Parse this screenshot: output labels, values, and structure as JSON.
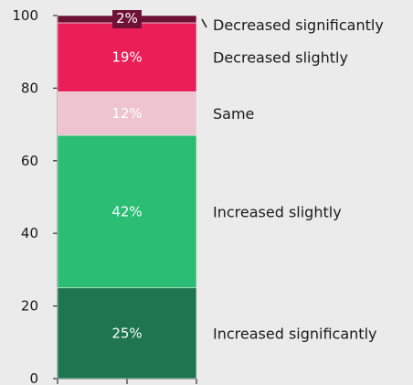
{
  "chart_data": {
    "type": "bar",
    "stacked": true,
    "categories": [
      ""
    ],
    "ylim": [
      0,
      100
    ],
    "yticks": [
      0,
      20,
      40,
      60,
      80,
      100
    ],
    "grid": false,
    "legend": "right",
    "series": [
      {
        "name": "Increased significantly",
        "value": 25,
        "label": "25%",
        "color": "#1e7550",
        "label_color": "#ffffff"
      },
      {
        "name": "Increased slightly",
        "value": 42,
        "label": "42%",
        "color": "#2bbd74",
        "label_color": "#ffffff"
      },
      {
        "name": "Same",
        "value": 12,
        "label": "12%",
        "color": "#eec4d0",
        "label_color": "#1a1a1a"
      },
      {
        "name": "Decreased slightly",
        "value": 19,
        "label": "19%",
        "color": "#ea1f58",
        "label_color": "#ffffff"
      },
      {
        "name": "Decreased significantly",
        "value": 2,
        "label": "2%",
        "color": "#6e1235",
        "label_color": "#ffffff"
      }
    ]
  }
}
